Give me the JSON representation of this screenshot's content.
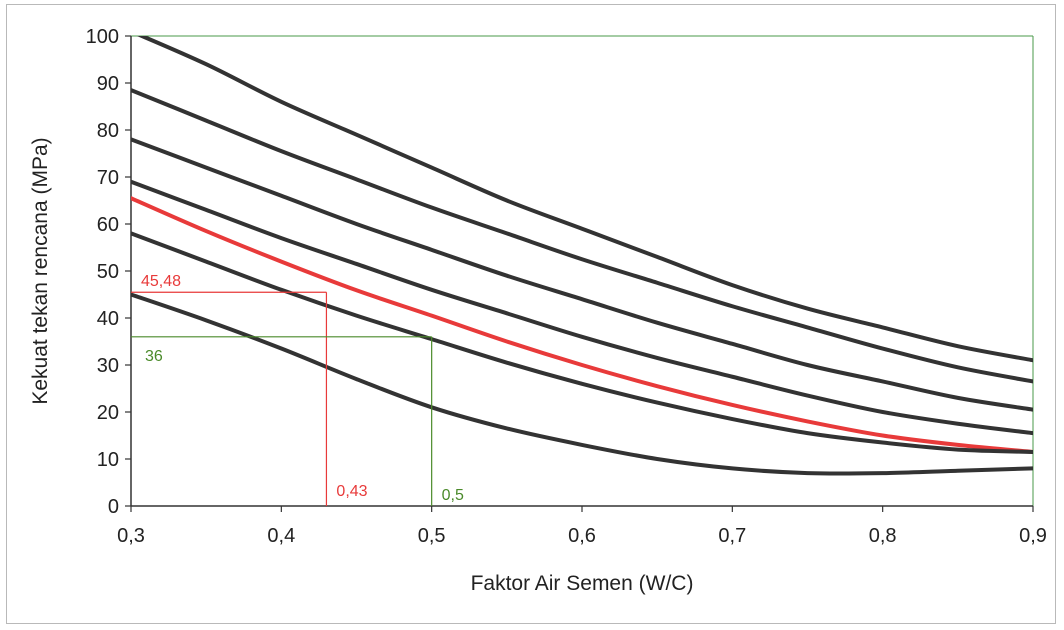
{
  "chart_data": {
    "type": "line",
    "xlabel": "Faktor Air Semen (W/C)",
    "ylabel": "Kekuat tekan rencana (MPa)",
    "xlim": [
      0.3,
      0.9
    ],
    "ylim": [
      0,
      100
    ],
    "x_ticks": [
      0.3,
      0.4,
      0.5,
      0.6,
      0.7,
      0.8,
      0.9
    ],
    "x_tick_labels": [
      "0,3",
      "0,4",
      "0,5",
      "0,6",
      "0,7",
      "0,8",
      "0,9"
    ],
    "y_ticks": [
      0,
      10,
      20,
      30,
      40,
      50,
      60,
      70,
      80,
      90,
      100
    ],
    "y_tick_labels": [
      "0",
      "10",
      "20",
      "30",
      "40",
      "50",
      "60",
      "70",
      "80",
      "90",
      "100"
    ],
    "grid": false,
    "x": [
      0.3,
      0.35,
      0.4,
      0.45,
      0.5,
      0.55,
      0.6,
      0.65,
      0.7,
      0.75,
      0.8,
      0.85,
      0.9
    ],
    "series": [
      {
        "color": "#333333",
        "values": [
          101,
          94,
          86,
          79,
          72,
          65,
          59,
          53,
          47,
          42,
          38,
          34,
          31
        ]
      },
      {
        "color": "#333333",
        "values": [
          88.5,
          82,
          75.5,
          69.5,
          63.5,
          58,
          52.5,
          47.5,
          42.5,
          38,
          33.5,
          29.5,
          26.5
        ]
      },
      {
        "color": "#333333",
        "values": [
          78,
          72,
          66,
          60,
          54.5,
          49,
          44,
          39,
          34.5,
          30,
          26.5,
          23,
          20.5
        ]
      },
      {
        "color": "#333333",
        "values": [
          69,
          63,
          57,
          51.5,
          46,
          41,
          36,
          31.5,
          27.5,
          23.5,
          20,
          17.5,
          15.5
        ]
      },
      {
        "color": "#e83a3a",
        "highlight": true,
        "values": [
          65.5,
          58.5,
          52,
          45.9,
          40.5,
          35,
          30,
          25.5,
          21.5,
          18,
          15,
          13,
          11.5
        ]
      },
      {
        "color": "#333333",
        "values": [
          58,
          52,
          46,
          40.5,
          35.5,
          30.5,
          26,
          22,
          18.5,
          15.5,
          13.5,
          12,
          11.5
        ]
      },
      {
        "color": "#333333",
        "values": [
          45,
          39.5,
          33.5,
          27,
          21,
          16.5,
          13,
          10,
          8,
          7,
          7,
          7.5,
          8
        ]
      }
    ],
    "annotations": [
      {
        "text": "45,48",
        "color": "#e83a3a",
        "x": 0.43,
        "y": 45.48
      },
      {
        "text": "0,43",
        "color": "#e83a3a",
        "x": 0.43,
        "y": 45.48
      },
      {
        "text": "36",
        "color": "#4a8a2a",
        "x": 0.5,
        "y": 36
      },
      {
        "text": "0,5",
        "color": "#4a8a2a",
        "x": 0.5,
        "y": 36
      }
    ]
  }
}
